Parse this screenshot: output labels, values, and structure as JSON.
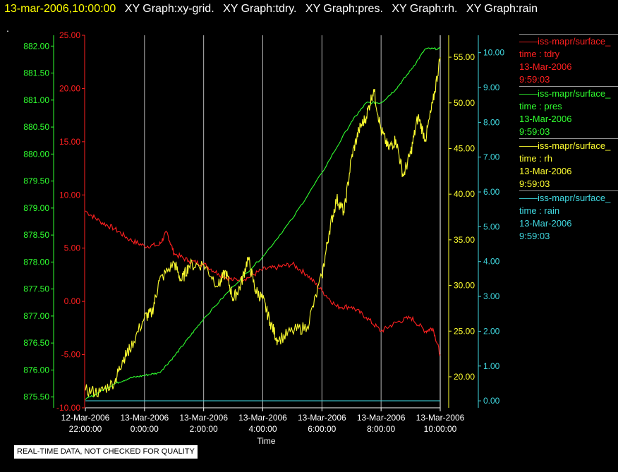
{
  "header": {
    "timestamp": "13-mar-2006,10:00:00",
    "titles": [
      "XY Graph:xy-grid.",
      "XY Graph:tdry.",
      "XY Graph:pres.",
      "XY Graph:rh.",
      "XY Graph:rain"
    ],
    "dot": "."
  },
  "footnote": "REAL-TIME DATA, NOT CHECKED FOR QUALITY",
  "legend": [
    {
      "source": "iss-mapr/surface_",
      "var": "time : tdry",
      "date": "13-Mar-2006",
      "time": "9:59:03",
      "color": "#ff2020"
    },
    {
      "source": "iss-mapr/surface_",
      "var": "time : pres",
      "date": "13-Mar-2006",
      "time": "9:59:03",
      "color": "#30ff30"
    },
    {
      "source": "iss-mapr/surface_",
      "var": "time : rh",
      "date": "13-Mar-2006",
      "time": "9:59:03",
      "color": "#ffff30"
    },
    {
      "source": "iss-mapr/surface_",
      "var": "time : rain",
      "date": "13-Mar-2006",
      "time": "9:59:03",
      "color": "#40d8e0"
    }
  ],
  "chart_data": {
    "type": "line",
    "xlabel": "Time",
    "x_ticks": [
      "12-Mar-2006 22:00:00",
      "13-Mar-2006 0:00:00",
      "13-Mar-2006 2:00:00",
      "13-Mar-2006 4:00:00",
      "13-Mar-2006 6:00:00",
      "13-Mar-2006 8:00:00",
      "13-Mar-2006 10:00:00"
    ],
    "xlim": [
      "12-Mar-2006 22:00:00",
      "13-Mar-2006 10:00:00"
    ],
    "grid": "vertical",
    "axes": {
      "tdry": {
        "min": -10,
        "max": 25,
        "ticks": [
          "25.00",
          "20.00",
          "15.00",
          "10.00",
          "5.00",
          "0.00",
          "-5.00",
          "-10.00"
        ],
        "color": "#ff2020"
      },
      "pres": {
        "min": 875.3,
        "max": 882.2,
        "ticks": [
          "882.00",
          "881.50",
          "881.00",
          "880.50",
          "880.00",
          "879.50",
          "879.00",
          "878.50",
          "878.00",
          "877.50",
          "877.00",
          "876.50",
          "876.00",
          "875.50"
        ],
        "color": "#30ff30"
      },
      "rh": {
        "min": 16.6,
        "max": 57.4,
        "ticks": [
          "55.00",
          "50.00",
          "45.00",
          "40.00",
          "35.00",
          "30.00",
          "25.00",
          "20.00"
        ],
        "color": "#ffff30"
      },
      "rain": {
        "min": -0.2,
        "max": 10.5,
        "ticks": [
          "10.00",
          "9.00",
          "8.00",
          "7.00",
          "6.00",
          "5.00",
          "4.00",
          "3.00",
          "2.00",
          "1.00",
          "0.00"
        ],
        "color": "#40d8e0"
      }
    },
    "series": [
      {
        "name": "time : tdry",
        "axis": "tdry",
        "x": [
          "12-Mar-2006 22:00",
          "12-Mar-2006 22:30",
          "12-Mar-2006 23:00",
          "12-Mar-2006 23:30",
          "13-Mar-2006 0:00",
          "13-Mar-2006 0:30",
          "13-Mar-2006 0:45",
          "13-Mar-2006 1:00",
          "13-Mar-2006 1:30",
          "13-Mar-2006 2:00",
          "13-Mar-2006 2:30",
          "13-Mar-2006 3:00",
          "13-Mar-2006 3:30",
          "13-Mar-2006 4:00",
          "13-Mar-2006 4:30",
          "13-Mar-2006 5:00",
          "13-Mar-2006 5:30",
          "13-Mar-2006 6:00",
          "13-Mar-2006 6:30",
          "13-Mar-2006 7:00",
          "13-Mar-2006 7:30",
          "13-Mar-2006 8:00",
          "13-Mar-2006 8:30",
          "13-Mar-2006 9:00",
          "13-Mar-2006 9:30",
          "13-Mar-2006 9:45",
          "13-Mar-2006 10:00"
        ],
        "y": [
          8.5,
          7.5,
          6.8,
          5.8,
          5.2,
          5.3,
          6.5,
          4.5,
          3.8,
          3.5,
          2.6,
          2.0,
          2.2,
          3.0,
          3.2,
          3.5,
          2.5,
          1.0,
          -0.5,
          -0.5,
          -1.5,
          -2.8,
          -2.0,
          -1.5,
          -2.8,
          -2.5,
          -5.0
        ]
      },
      {
        "name": "time : pres",
        "axis": "pres",
        "x": [
          "12-Mar-2006 22:00",
          "12-Mar-2006 22:30",
          "12-Mar-2006 23:00",
          "12-Mar-2006 23:30",
          "13-Mar-2006 0:00",
          "13-Mar-2006 0:30",
          "13-Mar-2006 1:00",
          "13-Mar-2006 1:30",
          "13-Mar-2006 2:00",
          "13-Mar-2006 3:00",
          "13-Mar-2006 4:00",
          "13-Mar-2006 5:00",
          "13-Mar-2006 6:00",
          "13-Mar-2006 7:00",
          "13-Mar-2006 7:30",
          "13-Mar-2006 8:00",
          "13-Mar-2006 8:30",
          "13-Mar-2006 9:00",
          "13-Mar-2006 9:30",
          "13-Mar-2006 10:00"
        ],
        "y": [
          875.45,
          875.6,
          875.75,
          875.85,
          875.9,
          875.95,
          876.25,
          876.6,
          876.95,
          877.55,
          878.1,
          878.8,
          879.65,
          880.6,
          880.95,
          880.95,
          881.2,
          881.55,
          881.95,
          881.95
        ]
      },
      {
        "name": "time : rh",
        "axis": "rh",
        "x": [
          "12-Mar-2006 22:00",
          "12-Mar-2006 22:30",
          "12-Mar-2006 23:00",
          "12-Mar-2006 23:15",
          "12-Mar-2006 23:30",
          "13-Mar-2006 0:00",
          "13-Mar-2006 0:15",
          "13-Mar-2006 0:30",
          "13-Mar-2006 1:00",
          "13-Mar-2006 1:15",
          "13-Mar-2006 1:30",
          "13-Mar-2006 2:00",
          "13-Mar-2006 2:30",
          "13-Mar-2006 2:45",
          "13-Mar-2006 3:00",
          "13-Mar-2006 3:15",
          "13-Mar-2006 3:30",
          "13-Mar-2006 3:45",
          "13-Mar-2006 4:00",
          "13-Mar-2006 4:15",
          "13-Mar-2006 4:30",
          "13-Mar-2006 5:00",
          "13-Mar-2006 5:30",
          "13-Mar-2006 6:00",
          "13-Mar-2006 6:15",
          "13-Mar-2006 6:30",
          "13-Mar-2006 6:45",
          "13-Mar-2006 7:00",
          "13-Mar-2006 7:15",
          "13-Mar-2006 7:30",
          "13-Mar-2006 7:45",
          "13-Mar-2006 8:00",
          "13-Mar-2006 8:15",
          "13-Mar-2006 8:30",
          "13-Mar-2006 8:45",
          "13-Mar-2006 9:00",
          "13-Mar-2006 9:15",
          "13-Mar-2006 9:30",
          "13-Mar-2006 9:45",
          "13-Mar-2006 10:00"
        ],
        "y": [
          18.5,
          18.3,
          19.5,
          21.8,
          23.0,
          26.5,
          27.0,
          30.5,
          32.5,
          30.5,
          32.2,
          32.3,
          30.0,
          31.5,
          28.5,
          30.0,
          33.0,
          29.5,
          28.5,
          26.0,
          24.0,
          25.0,
          25.5,
          31.0,
          36.0,
          39.5,
          38.0,
          44.0,
          47.0,
          48.5,
          51.5,
          47.0,
          45.0,
          46.0,
          42.0,
          44.5,
          48.5,
          46.0,
          50.0,
          55.0
        ]
      },
      {
        "name": "time : rain",
        "axis": "rain",
        "x": [
          "12-Mar-2006 22:00",
          "13-Mar-2006 10:00"
        ],
        "y": [
          0.0,
          0.0
        ]
      }
    ]
  }
}
